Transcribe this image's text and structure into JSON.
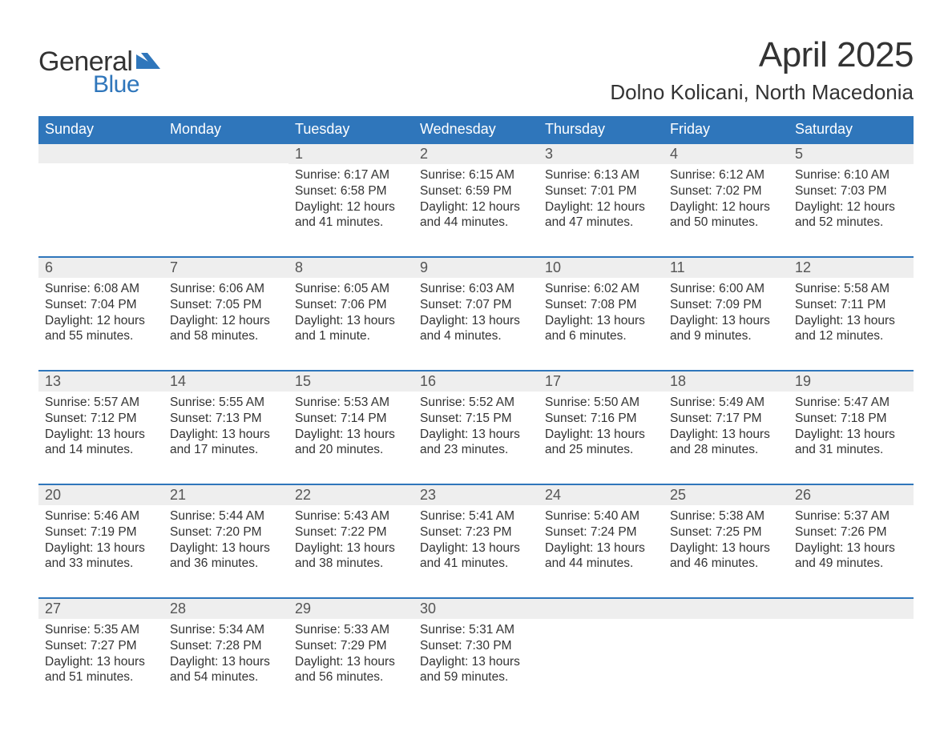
{
  "brand": {
    "word1": "General",
    "word2": "Blue",
    "logo_color": "#2f76bb",
    "text_color": "#333333"
  },
  "header": {
    "title": "April 2025",
    "location": "Dolno Kolicani, North Macedonia"
  },
  "style": {
    "page_bg": "#ffffff",
    "header_bg": "#2f76bb",
    "header_text": "#ffffff",
    "daynum_bg": "#eeeeee",
    "daynum_border": "#2f76bb",
    "body_text": "#333333",
    "title_fontsize": 44,
    "location_fontsize": 26,
    "dayheader_fontsize": 18,
    "cell_fontsize": 15.5,
    "columns": 7,
    "type": "calendar-table"
  },
  "day_headers": [
    "Sunday",
    "Monday",
    "Tuesday",
    "Wednesday",
    "Thursday",
    "Friday",
    "Saturday"
  ],
  "labels": {
    "sunrise": "Sunrise:",
    "sunset": "Sunset:",
    "daylight": "Daylight:"
  },
  "weeks": [
    [
      null,
      null,
      {
        "n": "1",
        "sunrise": "6:17 AM",
        "sunset": "6:58 PM",
        "daylight": "12 hours and 41 minutes."
      },
      {
        "n": "2",
        "sunrise": "6:15 AM",
        "sunset": "6:59 PM",
        "daylight": "12 hours and 44 minutes."
      },
      {
        "n": "3",
        "sunrise": "6:13 AM",
        "sunset": "7:01 PM",
        "daylight": "12 hours and 47 minutes."
      },
      {
        "n": "4",
        "sunrise": "6:12 AM",
        "sunset": "7:02 PM",
        "daylight": "12 hours and 50 minutes."
      },
      {
        "n": "5",
        "sunrise": "6:10 AM",
        "sunset": "7:03 PM",
        "daylight": "12 hours and 52 minutes."
      }
    ],
    [
      {
        "n": "6",
        "sunrise": "6:08 AM",
        "sunset": "7:04 PM",
        "daylight": "12 hours and 55 minutes."
      },
      {
        "n": "7",
        "sunrise": "6:06 AM",
        "sunset": "7:05 PM",
        "daylight": "12 hours and 58 minutes."
      },
      {
        "n": "8",
        "sunrise": "6:05 AM",
        "sunset": "7:06 PM",
        "daylight": "13 hours and 1 minute."
      },
      {
        "n": "9",
        "sunrise": "6:03 AM",
        "sunset": "7:07 PM",
        "daylight": "13 hours and 4 minutes."
      },
      {
        "n": "10",
        "sunrise": "6:02 AM",
        "sunset": "7:08 PM",
        "daylight": "13 hours and 6 minutes."
      },
      {
        "n": "11",
        "sunrise": "6:00 AM",
        "sunset": "7:09 PM",
        "daylight": "13 hours and 9 minutes."
      },
      {
        "n": "12",
        "sunrise": "5:58 AM",
        "sunset": "7:11 PM",
        "daylight": "13 hours and 12 minutes."
      }
    ],
    [
      {
        "n": "13",
        "sunrise": "5:57 AM",
        "sunset": "7:12 PM",
        "daylight": "13 hours and 14 minutes."
      },
      {
        "n": "14",
        "sunrise": "5:55 AM",
        "sunset": "7:13 PM",
        "daylight": "13 hours and 17 minutes."
      },
      {
        "n": "15",
        "sunrise": "5:53 AM",
        "sunset": "7:14 PM",
        "daylight": "13 hours and 20 minutes."
      },
      {
        "n": "16",
        "sunrise": "5:52 AM",
        "sunset": "7:15 PM",
        "daylight": "13 hours and 23 minutes."
      },
      {
        "n": "17",
        "sunrise": "5:50 AM",
        "sunset": "7:16 PM",
        "daylight": "13 hours and 25 minutes."
      },
      {
        "n": "18",
        "sunrise": "5:49 AM",
        "sunset": "7:17 PM",
        "daylight": "13 hours and 28 minutes."
      },
      {
        "n": "19",
        "sunrise": "5:47 AM",
        "sunset": "7:18 PM",
        "daylight": "13 hours and 31 minutes."
      }
    ],
    [
      {
        "n": "20",
        "sunrise": "5:46 AM",
        "sunset": "7:19 PM",
        "daylight": "13 hours and 33 minutes."
      },
      {
        "n": "21",
        "sunrise": "5:44 AM",
        "sunset": "7:20 PM",
        "daylight": "13 hours and 36 minutes."
      },
      {
        "n": "22",
        "sunrise": "5:43 AM",
        "sunset": "7:22 PM",
        "daylight": "13 hours and 38 minutes."
      },
      {
        "n": "23",
        "sunrise": "5:41 AM",
        "sunset": "7:23 PM",
        "daylight": "13 hours and 41 minutes."
      },
      {
        "n": "24",
        "sunrise": "5:40 AM",
        "sunset": "7:24 PM",
        "daylight": "13 hours and 44 minutes."
      },
      {
        "n": "25",
        "sunrise": "5:38 AM",
        "sunset": "7:25 PM",
        "daylight": "13 hours and 46 minutes."
      },
      {
        "n": "26",
        "sunrise": "5:37 AM",
        "sunset": "7:26 PM",
        "daylight": "13 hours and 49 minutes."
      }
    ],
    [
      {
        "n": "27",
        "sunrise": "5:35 AM",
        "sunset": "7:27 PM",
        "daylight": "13 hours and 51 minutes."
      },
      {
        "n": "28",
        "sunrise": "5:34 AM",
        "sunset": "7:28 PM",
        "daylight": "13 hours and 54 minutes."
      },
      {
        "n": "29",
        "sunrise": "5:33 AM",
        "sunset": "7:29 PM",
        "daylight": "13 hours and 56 minutes."
      },
      {
        "n": "30",
        "sunrise": "5:31 AM",
        "sunset": "7:30 PM",
        "daylight": "13 hours and 59 minutes."
      },
      null,
      null,
      null
    ]
  ]
}
